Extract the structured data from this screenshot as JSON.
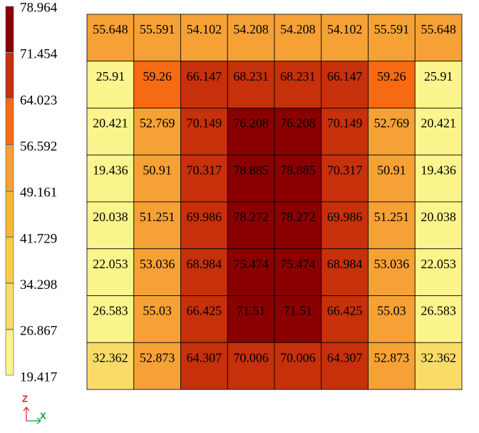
{
  "chart_data": {
    "type": "heatmap",
    "values": [
      [
        55.648,
        55.591,
        54.102,
        54.208,
        54.208,
        54.102,
        55.591,
        55.648
      ],
      [
        25.91,
        59.26,
        66.147,
        68.231,
        68.231,
        66.147,
        59.26,
        25.91
      ],
      [
        20.421,
        52.769,
        70.149,
        76.208,
        76.208,
        70.149,
        52.769,
        20.421
      ],
      [
        19.436,
        50.91,
        70.317,
        78.885,
        78.885,
        70.317,
        50.91,
        19.436
      ],
      [
        20.038,
        51.251,
        69.986,
        78.272,
        78.272,
        69.986,
        51.251,
        20.038
      ],
      [
        22.053,
        53.036,
        68.984,
        75.474,
        75.474,
        68.984,
        53.036,
        22.053
      ],
      [
        26.583,
        55.03,
        66.425,
        71.51,
        71.51,
        66.425,
        55.03,
        26.583
      ],
      [
        32.362,
        52.873,
        64.307,
        70.006,
        70.006,
        64.307,
        52.873,
        32.362
      ]
    ],
    "colorbar": {
      "lim": [
        19.417,
        78.964
      ],
      "ticks": [
        19.417,
        26.867,
        34.298,
        41.729,
        49.161,
        56.592,
        64.023,
        71.454,
        78.964
      ],
      "colors": [
        "#fcf48c",
        "#f9dc68",
        "#f8cd44",
        "#f6b734",
        "#f5a136",
        "#f66a14",
        "#c6300a",
        "#8a0000"
      ]
    },
    "axis_indicator": {
      "vertical": "Z",
      "horizontal": "X",
      "vertical_color": "#e02020",
      "horizontal_color": "#10a030"
    }
  }
}
